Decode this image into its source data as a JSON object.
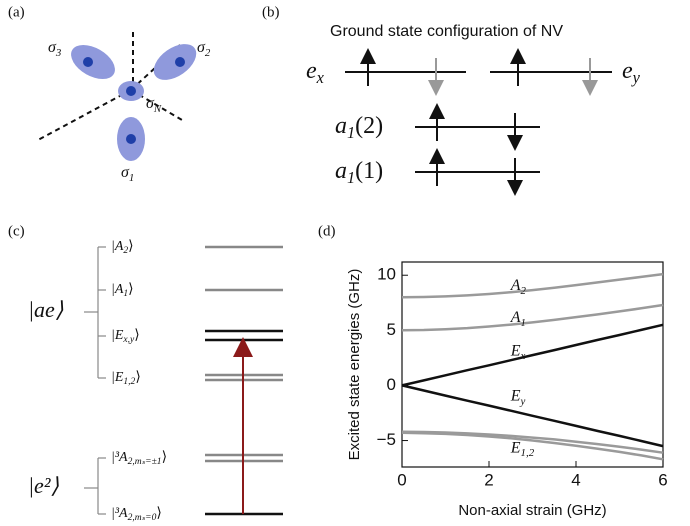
{
  "panel_a": {
    "label": "(a)",
    "orbitals": [
      {
        "main": "σ",
        "sub": "3"
      },
      {
        "main": "σ",
        "sub": "2"
      },
      {
        "main": "σ",
        "sub": "N"
      },
      {
        "main": "σ",
        "sub": "1"
      }
    ]
  },
  "panel_b": {
    "label": "(b)",
    "title": "Ground state configuration of NV",
    "levels": [
      {
        "main": "e",
        "sub": "x"
      },
      {
        "main": "e",
        "sub": "y"
      },
      {
        "main": "a",
        "sub": "1",
        "tail": "(2)"
      },
      {
        "main": "a",
        "sub": "1",
        "tail": "(1)"
      }
    ]
  },
  "panel_c": {
    "label": "(c)",
    "manifolds": [
      {
        "main": "|ae⟩"
      },
      {
        "main": "|e²⟩"
      }
    ],
    "states": [
      {
        "main": "|A",
        "sub": "2",
        "tail": "⟩"
      },
      {
        "main": "|A",
        "sub": "1",
        "tail": "⟩"
      },
      {
        "main": "|E",
        "sub": "x,y",
        "tail": "⟩"
      },
      {
        "main": "|E",
        "sub": "1,2",
        "tail": "⟩"
      },
      {
        "main": "|³A",
        "sub": "2,mₛ=±1",
        "tail": "⟩"
      },
      {
        "main": "|³A",
        "sub": "2,mₛ=0",
        "tail": "⟩"
      }
    ]
  },
  "chart_data": {
    "type": "line",
    "panel_label": "(d)",
    "x_label": "Non-axial strain (GHz)",
    "y_label": "Excited state energies (GHz)",
    "x": [
      0,
      0.5,
      1,
      1.5,
      2,
      2.5,
      3,
      3.5,
      4,
      4.5,
      5,
      5.5,
      6
    ],
    "xlim": [
      0,
      6
    ],
    "xticks": [
      0,
      2,
      4,
      6
    ],
    "ylim": [
      -7.4,
      11.2
    ],
    "yticks": [
      {
        "value": -5,
        "label": "−5"
      },
      0,
      5,
      10
    ],
    "series": [
      {
        "name": {
          "main": "A",
          "sub": "2"
        },
        "color": "#9a9a9a",
        "values": [
          8,
          8.02,
          8.08,
          8.17,
          8.3,
          8.46,
          8.65,
          8.87,
          9.1,
          9.35,
          9.6,
          9.85,
          10.1
        ]
      },
      {
        "name": {
          "main": "A",
          "sub": "1"
        },
        "color": "#9a9a9a",
        "values": [
          5,
          5.03,
          5.1,
          5.2,
          5.35,
          5.52,
          5.72,
          5.95,
          6.2,
          6.45,
          6.72,
          7.0,
          7.3
        ]
      },
      {
        "name": {
          "main": "E",
          "sub": "x"
        },
        "color": "#111111",
        "values": [
          0,
          0.46,
          0.92,
          1.38,
          1.83,
          2.29,
          2.75,
          3.21,
          3.67,
          4.13,
          4.58,
          5.04,
          5.5
        ]
      },
      {
        "name": {
          "main": "E",
          "sub": "y"
        },
        "color": "#111111",
        "values": [
          0,
          -0.46,
          -0.92,
          -1.38,
          -1.83,
          -2.29,
          -2.75,
          -3.21,
          -3.67,
          -4.13,
          -4.58,
          -5.04,
          -5.5
        ]
      },
      {
        "name": {
          "main": "E",
          "sub": "1,2"
        },
        "color": "#9a9a9a",
        "values": [
          -4.2,
          -4.22,
          -4.27,
          -4.35,
          -4.45,
          -4.58,
          -4.73,
          -4.9,
          -5.1,
          -5.32,
          -5.56,
          -5.82,
          -6.1
        ]
      },
      {
        "color": "#9a9a9a",
        "values": [
          -4.3,
          -4.33,
          -4.4,
          -4.5,
          -4.63,
          -4.8,
          -5.0,
          -5.22,
          -5.47,
          -5.74,
          -6.03,
          -6.35,
          -6.7
        ]
      }
    ]
  }
}
